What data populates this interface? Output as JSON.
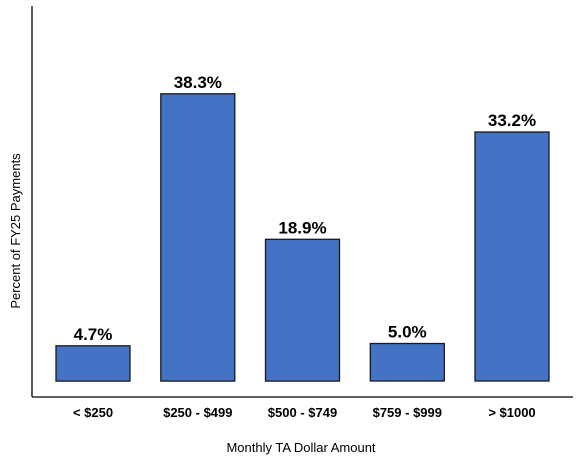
{
  "chart_data": {
    "type": "bar",
    "title": "",
    "xlabel": "Monthly TA Dollar Amount",
    "ylabel": "Percent of FY25 Payments",
    "categories": [
      "< $250",
      "$250 - $499",
      "$500 - $749",
      "$759 - $999",
      "> $1000"
    ],
    "values": [
      4.7,
      38.3,
      18.9,
      5.0,
      33.2
    ],
    "data_labels": [
      "4.7%",
      "38.3%",
      "18.9%",
      "5.0%",
      "33.2%"
    ],
    "ylim": [
      0,
      42
    ],
    "grid": false,
    "legend": "none",
    "bar_color": "#4472c4"
  }
}
